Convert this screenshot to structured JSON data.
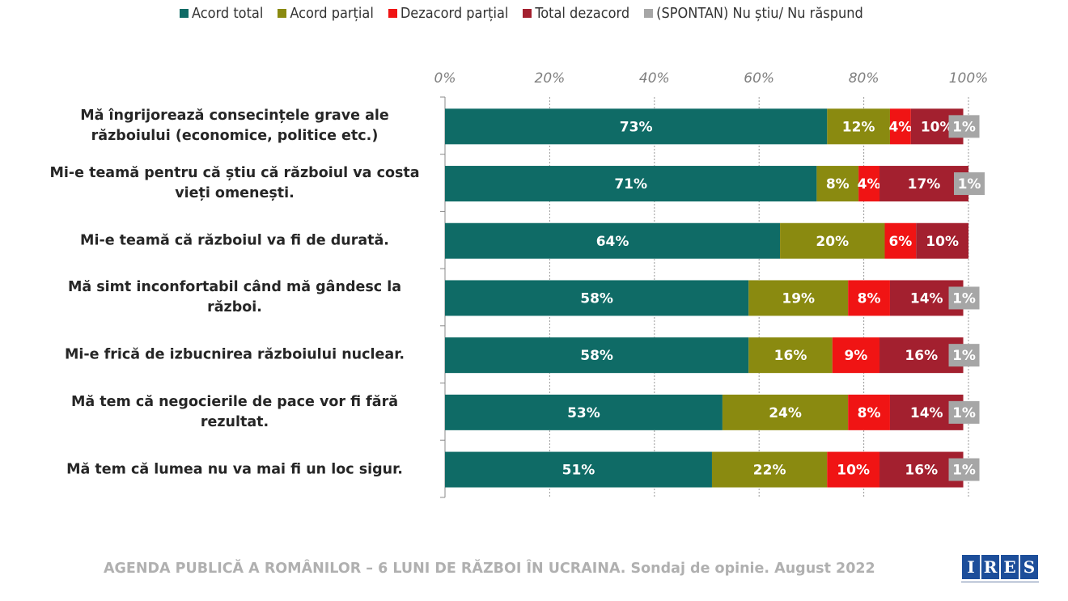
{
  "chart_data": {
    "type": "bar",
    "orientation": "horizontal",
    "stacked": true,
    "categories": [
      "Mă îngrijorează consecințele grave ale războiului (economice, politice etc.)",
      "Mi-e teamă pentru că știu că războiul va costa vieți omenești.",
      "Mi-e teamă că războiul va fi de durată.",
      "Mă simt inconfortabil când mă gândesc la război.",
      "Mi-e frică de izbucnirea războiului nuclear.",
      "Mă tem că negocierile de pace vor fi fără rezultat.",
      "Mă tem că lumea nu va mai fi un loc sigur."
    ],
    "series": [
      {
        "name": "Acord total",
        "color": "#0f6b66",
        "values": [
          73,
          71,
          64,
          58,
          58,
          53,
          51
        ]
      },
      {
        "name": "Acord parțial",
        "color": "#8a8a10",
        "values": [
          12,
          8,
          20,
          19,
          16,
          24,
          22
        ]
      },
      {
        "name": "Dezacord parțial",
        "color": "#f01414",
        "values": [
          4,
          4,
          6,
          8,
          9,
          8,
          10
        ]
      },
      {
        "name": "Total dezacord",
        "color": "#a3202f",
        "values": [
          10,
          17,
          10,
          14,
          16,
          14,
          16
        ]
      },
      {
        "name": "(SPONTAN) Nu știu/ Nu răspund",
        "color": "#a6a6a6",
        "values": [
          1,
          1,
          null,
          1,
          1,
          1,
          1
        ]
      }
    ],
    "xlim": [
      0,
      100
    ],
    "xticks": [
      "0%",
      "20%",
      "40%",
      "60%",
      "80%",
      "100%"
    ],
    "grid": true,
    "legend": "top",
    "data_labels": true
  },
  "footer": "AGENDA PUBLICĂ A ROMÂNILOR – 6 LUNI DE RĂZBOI ÎN UCRAINA. Sondaj de opinie. August 2022",
  "logo": "IRES"
}
